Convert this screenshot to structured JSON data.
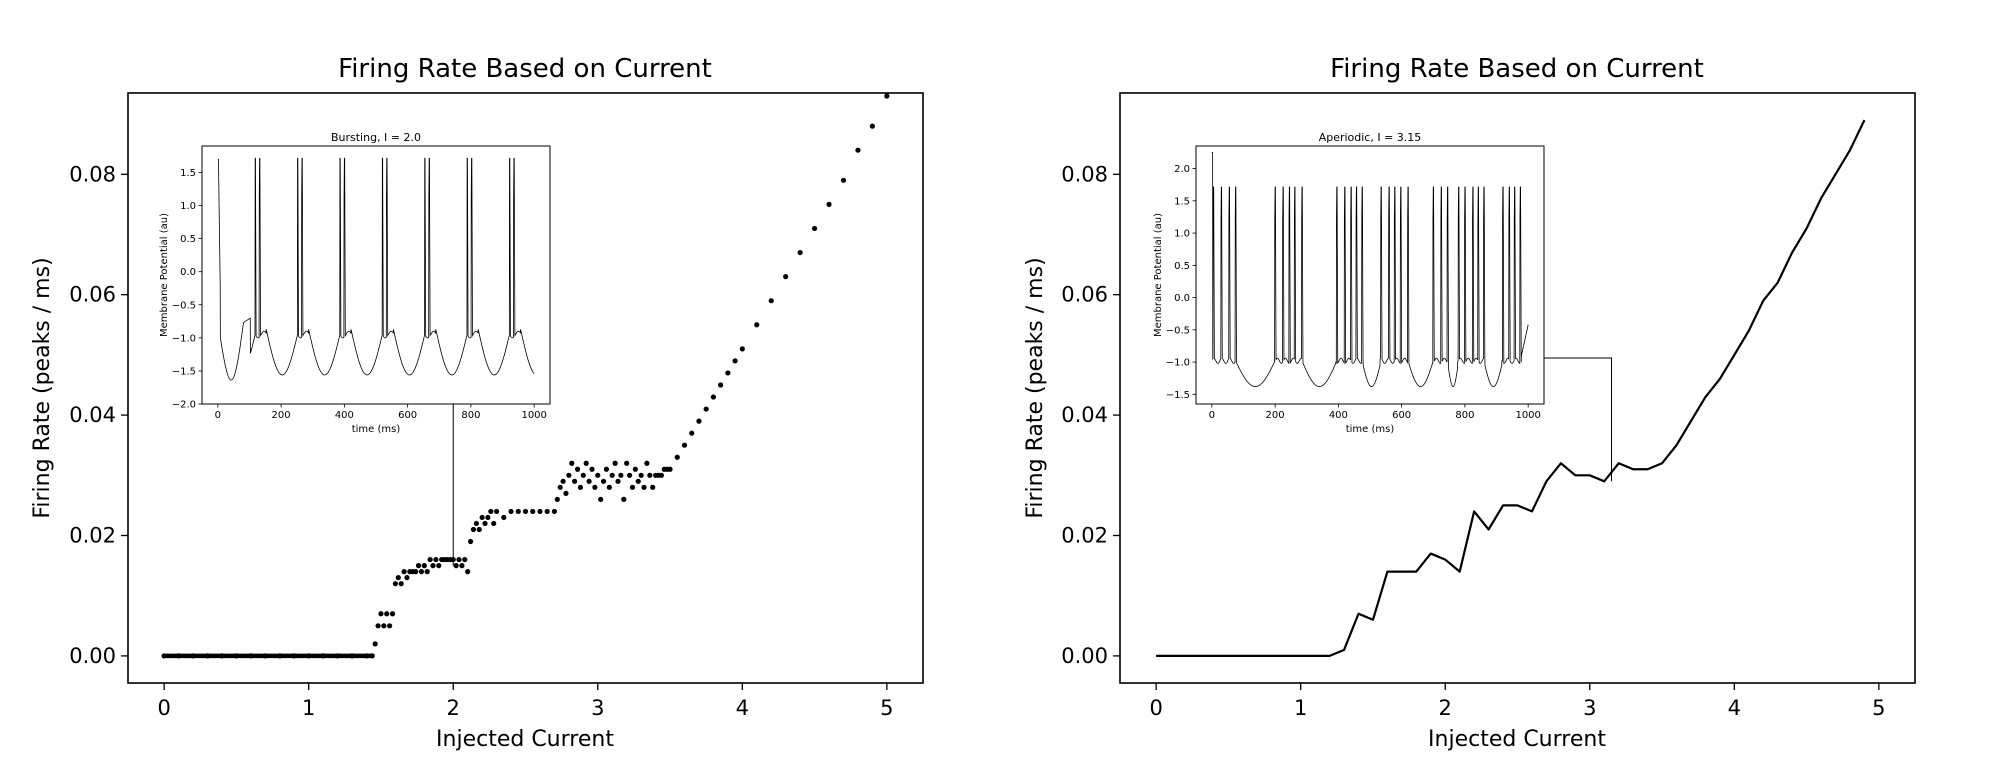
{
  "chart_data": [
    {
      "type": "scatter",
      "title": "Firing Rate Based on Current",
      "xlabel": "Injected Current",
      "ylabel": "Firing Rate (peaks / ms)",
      "xlim": [
        -0.25,
        5.25
      ],
      "ylim": [
        -0.0045,
        0.0935
      ],
      "xticks": [
        0,
        1,
        2,
        3,
        4,
        5
      ],
      "xtick_labels": [
        "0",
        "1",
        "2",
        "3",
        "4",
        "5"
      ],
      "yticks": [
        0.0,
        0.02,
        0.04,
        0.06,
        0.08
      ],
      "ytick_labels": [
        "0.00",
        "0.02",
        "0.04",
        "0.06",
        "0.08"
      ],
      "grid": false,
      "series": [
        {
          "points": [
            [
              0,
              0
            ],
            [
              0.1,
              0
            ],
            [
              0.2,
              0
            ],
            [
              0.3,
              0
            ],
            [
              0.4,
              0
            ],
            [
              0.5,
              0
            ],
            [
              0.6,
              0
            ],
            [
              0.7,
              0
            ],
            [
              0.8,
              0
            ],
            [
              0.9,
              0
            ],
            [
              1.0,
              0
            ],
            [
              1.1,
              0
            ],
            [
              1.2,
              0
            ],
            [
              1.3,
              0
            ],
            [
              1.4,
              0
            ],
            [
              1.44,
              0
            ],
            [
              1.46,
              0.002
            ],
            [
              1.48,
              0.005
            ],
            [
              1.5,
              0.007
            ],
            [
              1.52,
              0.005
            ],
            [
              1.54,
              0.007
            ],
            [
              1.56,
              0.005
            ],
            [
              1.58,
              0.007
            ],
            [
              1.6,
              0.012
            ],
            [
              1.62,
              0.013
            ],
            [
              1.64,
              0.012
            ],
            [
              1.66,
              0.014
            ],
            [
              1.68,
              0.013
            ],
            [
              1.7,
              0.014
            ],
            [
              1.72,
              0.014
            ],
            [
              1.74,
              0.014
            ],
            [
              1.76,
              0.015
            ],
            [
              1.78,
              0.014
            ],
            [
              1.8,
              0.015
            ],
            [
              1.82,
              0.014
            ],
            [
              1.84,
              0.016
            ],
            [
              1.86,
              0.015
            ],
            [
              1.88,
              0.016
            ],
            [
              1.9,
              0.015
            ],
            [
              1.92,
              0.016
            ],
            [
              1.94,
              0.016
            ],
            [
              1.96,
              0.016
            ],
            [
              1.98,
              0.016
            ],
            [
              2.0,
              0.016
            ],
            [
              2.02,
              0.015
            ],
            [
              2.04,
              0.016
            ],
            [
              2.06,
              0.015
            ],
            [
              2.08,
              0.016
            ],
            [
              2.1,
              0.014
            ],
            [
              2.12,
              0.019
            ],
            [
              2.14,
              0.021
            ],
            [
              2.16,
              0.022
            ],
            [
              2.18,
              0.021
            ],
            [
              2.2,
              0.023
            ],
            [
              2.22,
              0.022
            ],
            [
              2.24,
              0.023
            ],
            [
              2.26,
              0.024
            ],
            [
              2.28,
              0.022
            ],
            [
              2.3,
              0.024
            ],
            [
              2.35,
              0.023
            ],
            [
              2.4,
              0.024
            ],
            [
              2.45,
              0.024
            ],
            [
              2.5,
              0.024
            ],
            [
              2.55,
              0.024
            ],
            [
              2.6,
              0.024
            ],
            [
              2.65,
              0.024
            ],
            [
              2.7,
              0.024
            ],
            [
              2.72,
              0.026
            ],
            [
              2.74,
              0.028
            ],
            [
              2.76,
              0.029
            ],
            [
              2.78,
              0.027
            ],
            [
              2.8,
              0.03
            ],
            [
              2.82,
              0.032
            ],
            [
              2.84,
              0.029
            ],
            [
              2.86,
              0.031
            ],
            [
              2.88,
              0.028
            ],
            [
              2.9,
              0.03
            ],
            [
              2.92,
              0.032
            ],
            [
              2.94,
              0.029
            ],
            [
              2.96,
              0.031
            ],
            [
              2.98,
              0.028
            ],
            [
              3.0,
              0.03
            ],
            [
              3.02,
              0.026
            ],
            [
              3.04,
              0.029
            ],
            [
              3.06,
              0.031
            ],
            [
              3.08,
              0.028
            ],
            [
              3.1,
              0.03
            ],
            [
              3.12,
              0.032
            ],
            [
              3.14,
              0.029
            ],
            [
              3.16,
              0.03
            ],
            [
              3.18,
              0.026
            ],
            [
              3.2,
              0.032
            ],
            [
              3.22,
              0.03
            ],
            [
              3.24,
              0.028
            ],
            [
              3.26,
              0.031
            ],
            [
              3.28,
              0.029
            ],
            [
              3.3,
              0.03
            ],
            [
              3.32,
              0.028
            ],
            [
              3.34,
              0.032
            ],
            [
              3.36,
              0.03
            ],
            [
              3.38,
              0.028
            ],
            [
              3.4,
              0.03
            ],
            [
              3.42,
              0.03
            ],
            [
              3.44,
              0.03
            ],
            [
              3.46,
              0.031
            ],
            [
              3.48,
              0.031
            ],
            [
              3.5,
              0.031
            ],
            [
              3.55,
              0.033
            ],
            [
              3.6,
              0.035
            ],
            [
              3.65,
              0.037
            ],
            [
              3.7,
              0.039
            ],
            [
              3.75,
              0.041
            ],
            [
              3.8,
              0.043
            ],
            [
              3.85,
              0.045
            ],
            [
              3.9,
              0.047
            ],
            [
              3.95,
              0.049
            ],
            [
              4.0,
              0.051
            ],
            [
              4.1,
              0.055
            ],
            [
              4.2,
              0.059
            ],
            [
              4.3,
              0.063
            ],
            [
              4.4,
              0.067
            ],
            [
              4.5,
              0.071
            ],
            [
              4.6,
              0.075
            ],
            [
              4.7,
              0.079
            ],
            [
              4.8,
              0.084
            ],
            [
              4.9,
              0.088
            ],
            [
              5.0,
              0.093
            ]
          ]
        }
      ],
      "annotation": {
        "x": 2.0,
        "y": 0.015
      },
      "inset": {
        "type": "line",
        "title": "Bursting, I = 2.0",
        "xlabel": "time (ms)",
        "ylabel": "Membrane Potential (au)",
        "xlim": [
          -50,
          1050
        ],
        "ylim": [
          -2.0,
          1.9
        ],
        "xticks": [
          0,
          200,
          400,
          600,
          800,
          1000
        ],
        "xtick_labels": [
          "0",
          "200",
          "400",
          "600",
          "800",
          "1000"
        ],
        "yticks": [
          -2.0,
          -1.5,
          -1.0,
          -0.5,
          0.0,
          0.5,
          1.0,
          1.5
        ],
        "ytick_labels": [
          "−2.0",
          "−1.5",
          "−1.0",
          "−0.5",
          "0.0",
          "0.5",
          "1.0",
          "1.5"
        ],
        "trace": {
          "kind": "bursting",
          "initial": 1.7,
          "trough": -1.75,
          "period": 134,
          "first_burst": 118,
          "spikes_per_burst": 2,
          "spike_gap": 14,
          "peak": 1.72,
          "plateau": -0.95
        }
      }
    },
    {
      "type": "line",
      "title": "Firing Rate Based on Current",
      "xlabel": "Injected Current",
      "ylabel": "Firing Rate (peaks / ms)",
      "xlim": [
        -0.25,
        5.25
      ],
      "ylim": [
        -0.0045,
        0.0935
      ],
      "xticks": [
        0,
        1,
        2,
        3,
        4,
        5
      ],
      "xtick_labels": [
        "0",
        "1",
        "2",
        "3",
        "4",
        "5"
      ],
      "yticks": [
        0.0,
        0.02,
        0.04,
        0.06,
        0.08
      ],
      "ytick_labels": [
        "0.00",
        "0.02",
        "0.04",
        "0.06",
        "0.08"
      ],
      "grid": false,
      "series": [
        {
          "x": [
            0,
            0.1,
            0.2,
            0.3,
            0.4,
            0.5,
            0.6,
            0.7,
            0.8,
            0.9,
            1.0,
            1.1,
            1.2,
            1.3,
            1.4,
            1.5,
            1.6,
            1.7,
            1.8,
            1.9,
            2.0,
            2.1,
            2.2,
            2.3,
            2.4,
            2.5,
            2.6,
            2.7,
            2.8,
            2.9,
            3.0,
            3.1,
            3.2,
            3.3,
            3.4,
            3.5,
            3.6,
            3.7,
            3.8,
            3.9,
            4.0,
            4.1,
            4.2,
            4.3,
            4.4,
            4.5,
            4.6,
            4.7,
            4.8,
            4.9
          ],
          "values": [
            0,
            0,
            0,
            0,
            0,
            0,
            0,
            0,
            0,
            0,
            0,
            0,
            0,
            0.001,
            0.007,
            0.006,
            0.014,
            0.014,
            0.014,
            0.017,
            0.016,
            0.014,
            0.024,
            0.021,
            0.025,
            0.025,
            0.024,
            0.029,
            0.032,
            0.03,
            0.03,
            0.029,
            0.032,
            0.031,
            0.031,
            0.032,
            0.035,
            0.039,
            0.043,
            0.046,
            0.05,
            0.054,
            0.059,
            0.062,
            0.067,
            0.071,
            0.076,
            0.08,
            0.084,
            0.089
          ]
        }
      ],
      "annotation": {
        "x": 3.15,
        "y": 0.029
      },
      "inset": {
        "type": "line",
        "title": "Aperiodic, I = 3.15",
        "xlabel": "time (ms)",
        "ylabel": "Membrane Potential (au)",
        "xlim": [
          -50,
          1050
        ],
        "ylim": [
          -1.65,
          2.35
        ],
        "xticks": [
          0,
          200,
          400,
          600,
          800,
          1000
        ],
        "xtick_labels": [
          "0",
          "200",
          "400",
          "600",
          "800",
          "1000"
        ],
        "yticks": [
          -1.5,
          -1.0,
          -0.5,
          0.0,
          0.5,
          1.0,
          1.5,
          2.0
        ],
        "ytick_labels": [
          "−1.5",
          "−1.0",
          "−0.5",
          "0.0",
          "0.5",
          "1.0",
          "1.5",
          "2.0"
        ],
        "trace": {
          "kind": "aperiodic",
          "initial": 2.25,
          "trough": -1.45,
          "bursts": [
            [
              5,
              30,
              55,
              75
            ],
            [
              200,
              225,
              245,
              262,
              285
            ],
            [
              395,
              420,
              440,
              457,
              475
            ],
            [
              535,
              560,
              578,
              597,
              620
            ],
            [
              700,
              725,
              745
            ],
            [
              780,
              800,
              825,
              842,
              860
            ],
            [
              920,
              940,
              957,
              975
            ]
          ],
          "peak": 1.72,
          "plateau": -0.98,
          "end": -0.42
        }
      }
    }
  ]
}
